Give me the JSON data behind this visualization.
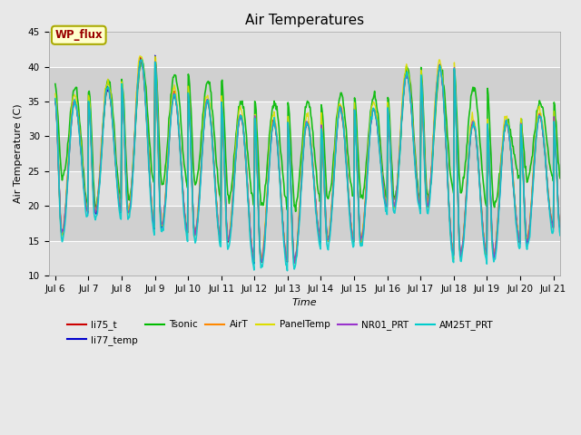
{
  "title": "Air Temperatures",
  "xlabel": "Time",
  "ylabel": "Air Temperature (C)",
  "ylim": [
    10,
    45
  ],
  "xlim_start": 5.8,
  "xlim_end": 21.2,
  "x_ticks": [
    6,
    7,
    8,
    9,
    10,
    11,
    12,
    13,
    14,
    15,
    16,
    17,
    18,
    19,
    20,
    21
  ],
  "x_tick_labels": [
    "Jul 6",
    "Jul 7",
    "Jul 8",
    "Jul 9",
    "Jul 10",
    "Jul 11",
    "Jul 12",
    "Jul 13",
    "Jul 14",
    "Jul 15",
    "Jul 16",
    "Jul 17",
    "Jul 18",
    "Jul 19",
    "Jul 20",
    "Jul 21"
  ],
  "y_ticks": [
    10,
    15,
    20,
    25,
    30,
    35,
    40,
    45
  ],
  "series": [
    {
      "name": "li75_t",
      "color": "#cc0000",
      "lw": 1.0
    },
    {
      "name": "li77_temp",
      "color": "#0000cc",
      "lw": 1.0
    },
    {
      "name": "Tsonic",
      "color": "#00bb00",
      "lw": 1.2
    },
    {
      "name": "AirT",
      "color": "#ff8800",
      "lw": 1.0
    },
    {
      "name": "PanelTemp",
      "color": "#dddd00",
      "lw": 1.0
    },
    {
      "name": "NR01_PRT",
      "color": "#9933cc",
      "lw": 1.0
    },
    {
      "name": "AM25T_PRT",
      "color": "#00cccc",
      "lw": 1.2
    }
  ],
  "annotation_text": "WP_flux",
  "fig_bg_color": "#e8e8e8",
  "plot_bg_color": "#d8d8d8",
  "grid_color": "#ffffff",
  "title_fontsize": 11,
  "axis_fontsize": 8,
  "tick_fontsize": 7.5
}
